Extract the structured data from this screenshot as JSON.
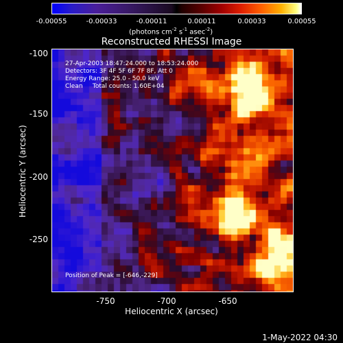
{
  "colorbar": {
    "ticks": [
      "-0.00055",
      "-0.00033",
      "-0.00011",
      "0.00011",
      "0.00033",
      "0.00055"
    ],
    "units": "(photons cm",
    "units_exp1": "-2",
    "units_mid": " s",
    "units_exp2": "-1",
    "units_mid2": " asec",
    "units_exp3": "-2",
    "units_end": ")",
    "colors": [
      "#0000ff",
      "#4a1e9a",
      "#000000",
      "#a00000",
      "#ff6000",
      "#ffffff"
    ]
  },
  "title": "Reconstructed RHESSI Image",
  "info": {
    "time": "27-Apr-2003 18:47:24.000 to 18:53:24.000",
    "detectors": "Detectors: 3F 4F 5F 6F 7F 8F, Att 0",
    "energy": "Energy Range: 25.0 - 50.0 keV",
    "clean": "Clean     Total counts: 1.60E+04",
    "peak": "Position of Peak = [-646,-229]"
  },
  "axes": {
    "xlabel": "Heliocentric X (arcsec)",
    "ylabel": "Heliocentric Y (arcsec)",
    "xticks": [
      "-750",
      "-700",
      "-650"
    ],
    "yticks": [
      "-100",
      "-150",
      "-200",
      "-250"
    ],
    "xlim": [
      -797,
      -597
    ],
    "ylim": [
      -292,
      -92
    ]
  },
  "heatmap": {
    "peak": [
      -646,
      -229
    ]
  },
  "timestamp": "1-May-2022 04:30"
}
